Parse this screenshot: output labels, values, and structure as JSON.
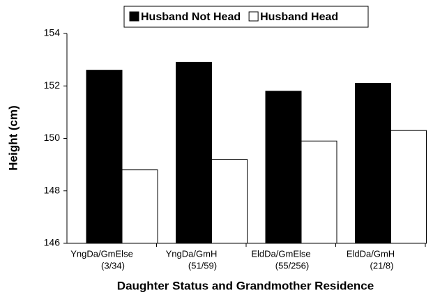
{
  "chart_data": {
    "type": "bar",
    "x_label": "Daughter Status and Grandmother Residence",
    "y_label": "Height (cm)",
    "categories": [
      [
        "YngDa/GmElse",
        "(3/34)"
      ],
      [
        "YngDa/GmH",
        "(51/59)"
      ],
      [
        "EldDa/GmElse",
        "(55/256)"
      ],
      [
        "EldDa/GmH",
        "(21/8)"
      ]
    ],
    "series": [
      {
        "name": "Husband Not Head",
        "color": "#000000",
        "values": [
          152.6,
          152.9,
          151.8,
          152.1
        ]
      },
      {
        "name": "Husband Head",
        "color": "#ffffff",
        "values": [
          148.8,
          149.2,
          149.9,
          150.3
        ]
      }
    ],
    "ylim": [
      146,
      154
    ],
    "yticks": [
      146,
      148,
      150,
      152,
      154
    ],
    "legend": "top"
  }
}
